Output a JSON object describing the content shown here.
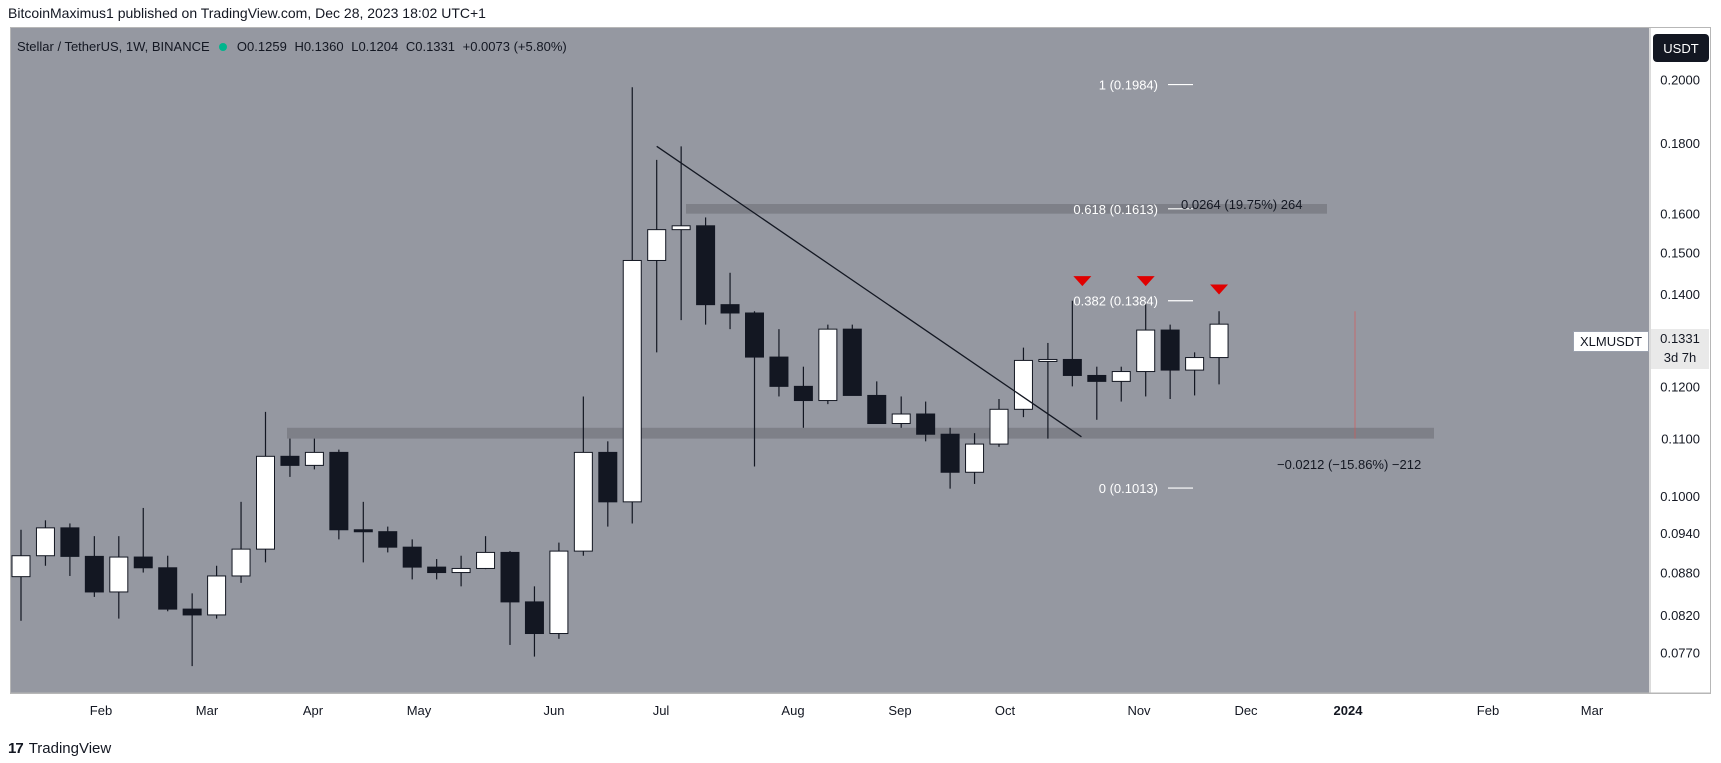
{
  "publisher": "BitcoinMaximus1 published on TradingView.com, Dec 28, 2023 18:02 UTC+1",
  "brand": "TradingView",
  "header": {
    "title": "Stellar / TetherUS, 1W, BINANCE",
    "o_label": "O",
    "o_value": "0.1259",
    "h_label": "H",
    "h_value": "0.1360",
    "l_label": "L",
    "l_value": "0.1204",
    "c_label": "C",
    "c_value": "0.1331",
    "change": "+0.0073 (+5.80%)"
  },
  "currency_button": "USDT",
  "last_price": {
    "symbol": "XLMUSDT",
    "price": "0.1331",
    "countdown": "3d 7h"
  },
  "colors": {
    "background": "#9598a1",
    "bull_candle": "#ffffff",
    "bear_candle": "#131722",
    "zone": "#6b6e75",
    "arrow": "#e00000",
    "text": "#131722"
  },
  "chart_data": {
    "type": "candlestick",
    "title": "Stellar / TetherUS, 1W, BINANCE",
    "scale": "log",
    "ylim": [
      0.072,
      0.218
    ],
    "y_ticks": [
      "0.2000",
      "0.1800",
      "0.1600",
      "0.1500",
      "0.1400",
      "0.1331",
      "0.1200",
      "0.1100",
      "0.1000",
      "0.0940",
      "0.0880",
      "0.0820",
      "0.0770"
    ],
    "x_labels": [
      "Feb",
      "Mar",
      "Apr",
      "May",
      "Jun",
      "Jul",
      "Aug",
      "Sep",
      "Oct",
      "Nov",
      "Dec",
      "2024",
      "Feb",
      "Mar"
    ],
    "candles": [
      {
        "week": "2023-01-02",
        "o": 0.0874,
        "h": 0.0945,
        "l": 0.0812,
        "c": 0.0905
      },
      {
        "week": "2023-01-09",
        "o": 0.0905,
        "h": 0.096,
        "l": 0.089,
        "c": 0.0948
      },
      {
        "week": "2023-01-16",
        "o": 0.0948,
        "h": 0.0955,
        "l": 0.0875,
        "c": 0.0904
      },
      {
        "week": "2023-01-23",
        "o": 0.0904,
        "h": 0.0935,
        "l": 0.0845,
        "c": 0.0852
      },
      {
        "week": "2023-01-30",
        "o": 0.0852,
        "h": 0.0935,
        "l": 0.0815,
        "c": 0.0903
      },
      {
        "week": "2023-02-06",
        "o": 0.0903,
        "h": 0.098,
        "l": 0.088,
        "c": 0.0887
      },
      {
        "week": "2023-02-13",
        "o": 0.0887,
        "h": 0.0905,
        "l": 0.0825,
        "c": 0.0828
      },
      {
        "week": "2023-02-20",
        "o": 0.0828,
        "h": 0.085,
        "l": 0.0753,
        "c": 0.082
      },
      {
        "week": "2023-02-27",
        "o": 0.082,
        "h": 0.089,
        "l": 0.0815,
        "c": 0.0875
      },
      {
        "week": "2023-03-06",
        "o": 0.0875,
        "h": 0.099,
        "l": 0.0865,
        "c": 0.0915
      },
      {
        "week": "2023-03-13",
        "o": 0.0915,
        "h": 0.115,
        "l": 0.0895,
        "c": 0.1068
      },
      {
        "week": "2023-03-20",
        "o": 0.1068,
        "h": 0.11,
        "l": 0.1032,
        "c": 0.1052
      },
      {
        "week": "2023-03-27",
        "o": 0.1052,
        "h": 0.11,
        "l": 0.1045,
        "c": 0.1075
      },
      {
        "week": "2023-04-03",
        "o": 0.1075,
        "h": 0.108,
        "l": 0.093,
        "c": 0.0945
      },
      {
        "week": "2023-04-10",
        "o": 0.0945,
        "h": 0.099,
        "l": 0.0895,
        "c": 0.0942
      },
      {
        "week": "2023-04-17",
        "o": 0.0942,
        "h": 0.095,
        "l": 0.091,
        "c": 0.0918
      },
      {
        "week": "2023-04-24",
        "o": 0.0918,
        "h": 0.093,
        "l": 0.087,
        "c": 0.0888
      },
      {
        "week": "2023-05-01",
        "o": 0.0888,
        "h": 0.09,
        "l": 0.087,
        "c": 0.088
      },
      {
        "week": "2023-05-08",
        "o": 0.088,
        "h": 0.0905,
        "l": 0.086,
        "c": 0.0886
      },
      {
        "week": "2023-05-15",
        "o": 0.0886,
        "h": 0.0935,
        "l": 0.0885,
        "c": 0.091
      },
      {
        "week": "2023-05-22",
        "o": 0.091,
        "h": 0.0912,
        "l": 0.078,
        "c": 0.0838
      },
      {
        "week": "2023-05-29",
        "o": 0.0838,
        "h": 0.086,
        "l": 0.0765,
        "c": 0.0795
      },
      {
        "week": "2023-06-05",
        "o": 0.0795,
        "h": 0.0925,
        "l": 0.0788,
        "c": 0.0912
      },
      {
        "week": "2023-06-12",
        "o": 0.0912,
        "h": 0.118,
        "l": 0.0905,
        "c": 0.1075
      },
      {
        "week": "2023-06-19",
        "o": 0.1075,
        "h": 0.1095,
        "l": 0.095,
        "c": 0.099
      },
      {
        "week": "2023-06-26",
        "o": 0.099,
        "h": 0.1975,
        "l": 0.0955,
        "c": 0.148
      },
      {
        "week": "2023-07-03",
        "o": 0.148,
        "h": 0.175,
        "l": 0.127,
        "c": 0.1558
      },
      {
        "week": "2023-07-10",
        "o": 0.1558,
        "h": 0.179,
        "l": 0.134,
        "c": 0.1568
      },
      {
        "week": "2023-07-17",
        "o": 0.1568,
        "h": 0.159,
        "l": 0.133,
        "c": 0.1375
      },
      {
        "week": "2023-07-24",
        "o": 0.1375,
        "h": 0.145,
        "l": 0.132,
        "c": 0.1356
      },
      {
        "week": "2023-07-31",
        "o": 0.1356,
        "h": 0.136,
        "l": 0.105,
        "c": 0.126
      },
      {
        "week": "2023-08-07",
        "o": 0.126,
        "h": 0.132,
        "l": 0.118,
        "c": 0.12
      },
      {
        "week": "2023-08-14",
        "o": 0.12,
        "h": 0.124,
        "l": 0.112,
        "c": 0.1172
      },
      {
        "week": "2023-08-21",
        "o": 0.1172,
        "h": 0.133,
        "l": 0.1165,
        "c": 0.132
      },
      {
        "week": "2023-08-28",
        "o": 0.132,
        "h": 0.133,
        "l": 0.119,
        "c": 0.1182
      },
      {
        "week": "2023-09-04",
        "o": 0.1182,
        "h": 0.121,
        "l": 0.1135,
        "c": 0.1128
      },
      {
        "week": "2023-09-11",
        "o": 0.1128,
        "h": 0.118,
        "l": 0.112,
        "c": 0.1146
      },
      {
        "week": "2023-09-18",
        "o": 0.1146,
        "h": 0.117,
        "l": 0.1095,
        "c": 0.1108
      },
      {
        "week": "2023-09-25",
        "o": 0.1108,
        "h": 0.112,
        "l": 0.1012,
        "c": 0.104
      },
      {
        "week": "2023-10-02",
        "o": 0.104,
        "h": 0.111,
        "l": 0.102,
        "c": 0.109
      },
      {
        "week": "2023-10-09",
        "o": 0.109,
        "h": 0.1175,
        "l": 0.1085,
        "c": 0.1155
      },
      {
        "week": "2023-10-16",
        "o": 0.1155,
        "h": 0.128,
        "l": 0.114,
        "c": 0.1253
      },
      {
        "week": "2023-10-23",
        "o": 0.1253,
        "h": 0.129,
        "l": 0.11,
        "c": 0.1255
      },
      {
        "week": "2023-10-30",
        "o": 0.1255,
        "h": 0.1384,
        "l": 0.12,
        "c": 0.1222
      },
      {
        "week": "2023-11-06",
        "o": 0.1222,
        "h": 0.124,
        "l": 0.1135,
        "c": 0.121
      },
      {
        "week": "2023-11-13",
        "o": 0.121,
        "h": 0.124,
        "l": 0.117,
        "c": 0.123
      },
      {
        "week": "2023-11-20",
        "o": 0.123,
        "h": 0.1378,
        "l": 0.118,
        "c": 0.1318
      },
      {
        "week": "2023-11-27",
        "o": 0.1318,
        "h": 0.133,
        "l": 0.1175,
        "c": 0.1233
      },
      {
        "week": "2023-12-04",
        "o": 0.1233,
        "h": 0.127,
        "l": 0.1182,
        "c": 0.1259
      },
      {
        "week": "2023-12-11",
        "o": 0.1259,
        "h": 0.136,
        "l": 0.1204,
        "c": 0.1331
      }
    ],
    "fib_levels": [
      {
        "label": "1 (0.1984)",
        "value": 0.1984
      },
      {
        "label": "0.618 (0.1613)",
        "value": 0.1613
      },
      {
        "label": "0.382 (0.1384)",
        "value": 0.1384
      },
      {
        "label": "0 (0.1013)",
        "value": 0.1013
      }
    ],
    "zones": [
      {
        "name": "resistance",
        "low": 0.16,
        "high": 0.1626
      },
      {
        "name": "support",
        "low": 0.11,
        "high": 0.112
      }
    ],
    "trendline": {
      "from": {
        "week": "2023-07-03",
        "value": 0.179
      },
      "to": {
        "week": "2023-10-16",
        "value": 0.106
      }
    },
    "measure_up": "0.0264 (19.75%) 264",
    "measure_down": "−0.0212 (−15.86%) −212",
    "arrows": [
      {
        "week": "2023-10-30",
        "value": 0.143
      },
      {
        "week": "2023-11-20",
        "value": 0.143
      },
      {
        "week": "2023-12-11",
        "value": 0.141
      }
    ]
  }
}
